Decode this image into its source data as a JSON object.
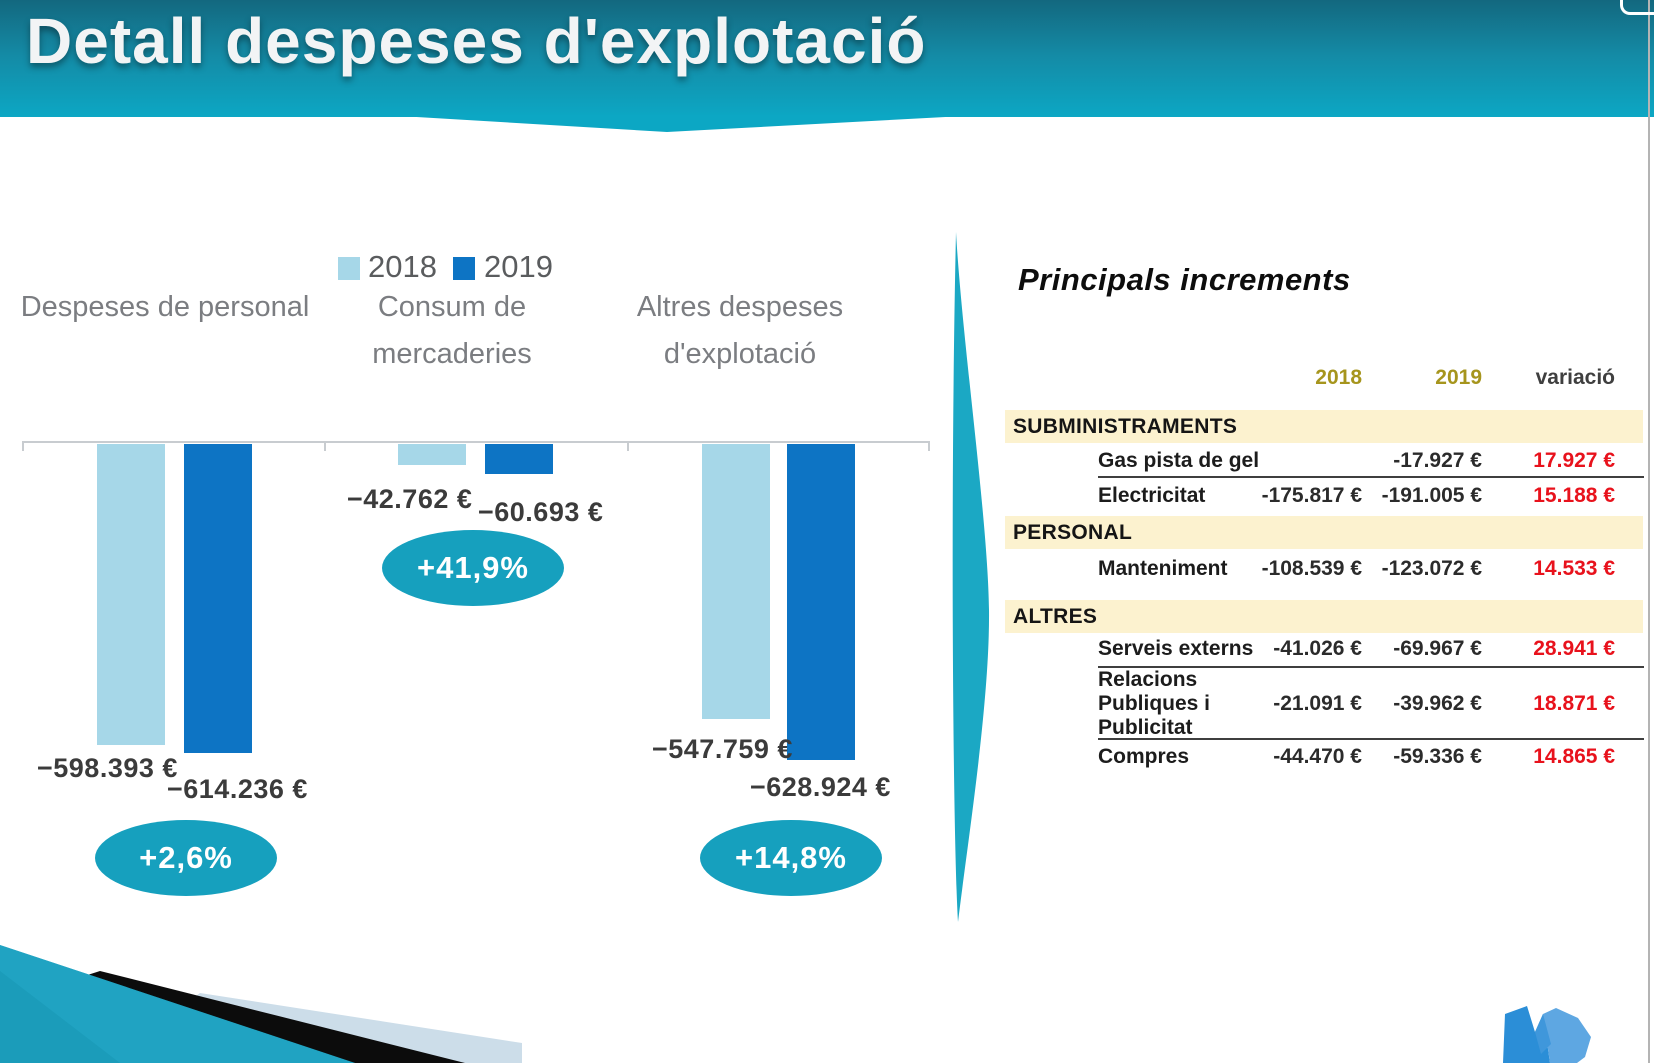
{
  "title": "Detall despeses d'explotació",
  "chart_data": {
    "type": "bar",
    "title": "",
    "orientation": "columns extend downward from a zero baseline (negative values)",
    "legend_position": "top",
    "legend": [
      {
        "label": "2018",
        "color": "#a6d7e8"
      },
      {
        "label": "2019",
        "color": "#0d74c4"
      }
    ],
    "categories": [
      "Despeses de personal",
      "Consum de mercaderies",
      "Altres despeses d'explotació"
    ],
    "series": [
      {
        "name": "2018",
        "values": [
          -598393,
          -42762,
          -547759
        ],
        "value_labels": [
          "−598.393 €",
          "−42.762 €",
          "−547.759 €"
        ]
      },
      {
        "name": "2019",
        "values": [
          -614236,
          -60693,
          -628924
        ],
        "value_labels": [
          "−614.236 €",
          "−60.693 €",
          "−628.924 €"
        ]
      }
    ],
    "change_badges": [
      "+2,6%",
      "+41,9%",
      "+14,8%"
    ],
    "ylim": [
      -650000,
      0
    ],
    "grid": false
  },
  "panel": {
    "title": "Principals increments",
    "columns": [
      "2018",
      "2019",
      "variació"
    ],
    "sections": [
      {
        "name": "SUBMINISTRAMENTS",
        "rows": [
          {
            "label": "Gas pista de gel",
            "y2018": "",
            "y2019": "-17.927 €",
            "variacio": "17.927 €"
          },
          {
            "label": "Electricitat",
            "y2018": "-175.817 €",
            "y2019": "-191.005 €",
            "variacio": "15.188 €"
          }
        ]
      },
      {
        "name": "PERSONAL",
        "rows": [
          {
            "label": "Manteniment",
            "y2018": "-108.539 €",
            "y2019": "-123.072 €",
            "variacio": "14.533 €"
          }
        ]
      },
      {
        "name": "ALTRES",
        "rows": [
          {
            "label": "Serveis externs",
            "y2018": "-41.026 €",
            "y2019": "-69.967 €",
            "variacio": "28.941 €"
          },
          {
            "label": "Relacions Publiques i Publicitat",
            "label_lines": [
              "Relacions",
              "Publiques i",
              "Publicitat"
            ],
            "y2018": "-21.091 €",
            "y2019": "-39.962 €",
            "variacio": "18.871 €"
          },
          {
            "label": "Compres",
            "y2018": "-44.470 €",
            "y2019": "-59.336 €",
            "variacio": "14.865 €"
          }
        ]
      }
    ]
  },
  "colors": {
    "banner_top": "#13687f",
    "banner_bottom": "#0ca7c4",
    "bar_2018": "#a6d7e8",
    "bar_2019": "#0d74c4",
    "badge_teal": "#16a0be",
    "divider_teal": "#1ba8c4",
    "band_cream": "#fcf2cf",
    "header_year_olive": "#a6951d",
    "header_variacio_gray": "#3f3f3f",
    "variacio_red": "#e8121c"
  }
}
